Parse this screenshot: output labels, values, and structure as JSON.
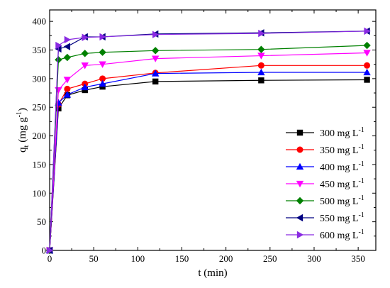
{
  "chart_data": {
    "type": "line",
    "title": "",
    "xlabel": "t (min)",
    "ylabel_main": "q",
    "ylabel_sub": "t",
    "ylabel_unit": " (mg g",
    "ylabel_exp": "-1",
    "ylabel_close": ")",
    "xlim": [
      0,
      370
    ],
    "ylim": [
      0,
      420
    ],
    "xticks": [
      0,
      50,
      100,
      150,
      200,
      250,
      300,
      350
    ],
    "yticks": [
      0,
      50,
      100,
      150,
      200,
      250,
      300,
      350,
      400
    ],
    "grid": false,
    "legend_position": "lower-right",
    "x": [
      0,
      10,
      20,
      40,
      60,
      120,
      240,
      360
    ],
    "series": [
      {
        "name_main": "300 mg L",
        "name_exp": "-1",
        "color": "#000000",
        "marker": "square",
        "values": [
          0,
          248,
          271,
          280,
          286,
          295,
          297,
          298
        ]
      },
      {
        "name_main": "350 mg L",
        "name_exp": "-1",
        "color": "#ff0000",
        "marker": "circle",
        "values": [
          0,
          255,
          282,
          291,
          300,
          310,
          323,
          323
        ]
      },
      {
        "name_main": "400 mg L",
        "name_exp": "-1",
        "color": "#0000ff",
        "marker": "triangle-up",
        "values": [
          0,
          258,
          272,
          285,
          291,
          309,
          311,
          311
        ]
      },
      {
        "name_main": "450 mg L",
        "name_exp": "-1",
        "color": "#ff00ff",
        "marker": "triangle-down",
        "values": [
          0,
          280,
          298,
          323,
          325,
          335,
          340,
          345
        ]
      },
      {
        "name_main": "500 mg L",
        "name_exp": "-1",
        "color": "#008000",
        "marker": "diamond",
        "values": [
          0,
          333,
          337,
          344,
          346,
          349,
          351,
          358
        ]
      },
      {
        "name_main": "550 mg L",
        "name_exp": "-1",
        "color": "#000080",
        "marker": "triangle-left",
        "values": [
          0,
          352,
          356,
          373,
          373,
          378,
          380,
          383
        ]
      },
      {
        "name_main": "600 mg L",
        "name_exp": "-1",
        "color": "#8a2be2",
        "marker": "triangle-right",
        "values": [
          0,
          358,
          368,
          372,
          373,
          377,
          379,
          383
        ]
      }
    ]
  }
}
